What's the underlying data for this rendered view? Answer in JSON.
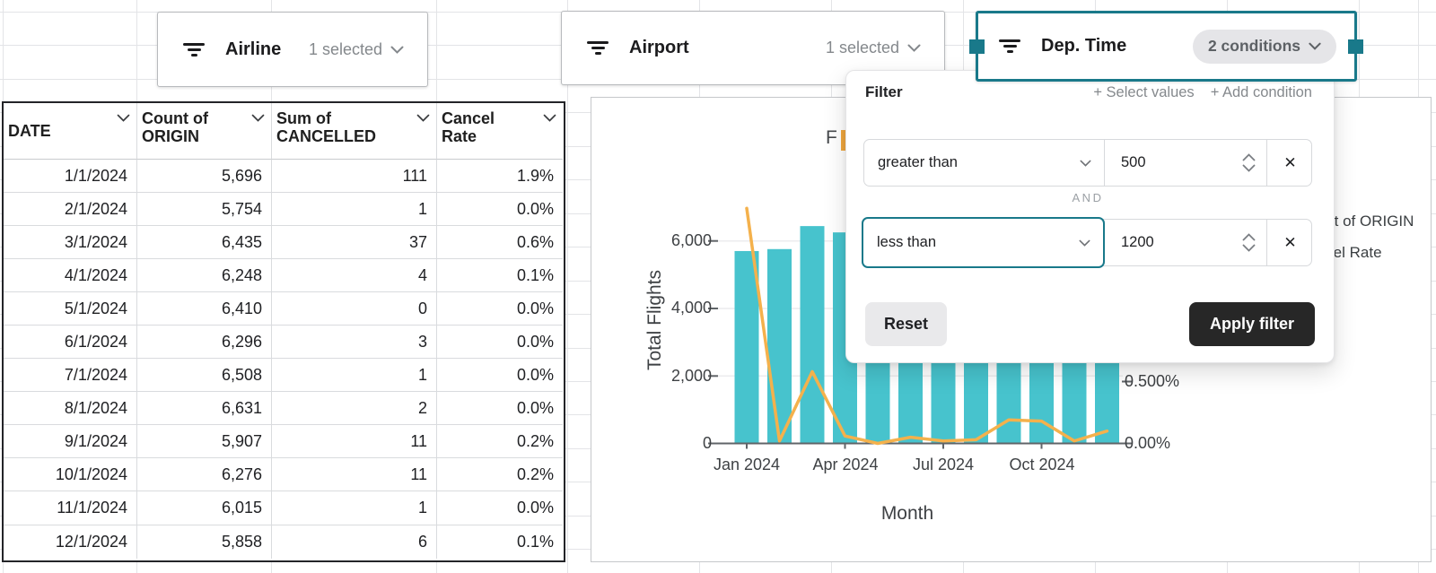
{
  "slicers": [
    {
      "label": "Airline",
      "status": "1 selected",
      "selected": false
    },
    {
      "label": "Airport",
      "status": "1 selected",
      "selected": false
    },
    {
      "label": "Dep. Time",
      "status": "2 conditions",
      "selected": true
    }
  ],
  "filter_popup": {
    "title": "Filter",
    "select_values_label": "+ Select values",
    "add_condition_label": "+ Add condition",
    "conjunction": "AND",
    "remove_icon": "✕",
    "conditions": [
      {
        "operator": "greater than",
        "value": "500"
      },
      {
        "operator": "less than",
        "value": "1200",
        "focused": true
      }
    ],
    "reset_label": "Reset",
    "apply_label": "Apply filter"
  },
  "table": {
    "columns": [
      "DATE",
      "Count of ORIGIN",
      "Sum of CANCELLED",
      "Cancel Rate"
    ],
    "rows": [
      [
        "1/1/2024",
        "5,696",
        "111",
        "1.9%"
      ],
      [
        "2/1/2024",
        "5,754",
        "1",
        "0.0%"
      ],
      [
        "3/1/2024",
        "6,435",
        "37",
        "0.6%"
      ],
      [
        "4/1/2024",
        "6,248",
        "4",
        "0.1%"
      ],
      [
        "5/1/2024",
        "6,410",
        "0",
        "0.0%"
      ],
      [
        "6/1/2024",
        "6,296",
        "3",
        "0.0%"
      ],
      [
        "7/1/2024",
        "6,508",
        "1",
        "0.0%"
      ],
      [
        "8/1/2024",
        "6,631",
        "2",
        "0.0%"
      ],
      [
        "9/1/2024",
        "5,907",
        "11",
        "0.2%"
      ],
      [
        "10/1/2024",
        "6,276",
        "11",
        "0.2%"
      ],
      [
        "11/1/2024",
        "6,015",
        "1",
        "0.0%"
      ],
      [
        "12/1/2024",
        "5,858",
        "6",
        "0.1%"
      ]
    ]
  },
  "chart_data": {
    "type": "combo-bar-line",
    "title_visible": "F",
    "categories": [
      "Jan 2024",
      "Feb 2024",
      "Mar 2024",
      "Apr 2024",
      "May 2024",
      "Jun 2024",
      "Jul 2024",
      "Aug 2024",
      "Sep 2024",
      "Oct 2024",
      "Nov 2024",
      "Dec 2024"
    ],
    "series": [
      {
        "name": "Count of ORIGIN",
        "type": "bar",
        "axis": "left",
        "color": "#47c3cd",
        "values": [
          5696,
          5754,
          6435,
          6248,
          6410,
          6296,
          6508,
          6631,
          5907,
          6276,
          6015,
          5858
        ]
      },
      {
        "name": "Cancel Rate",
        "type": "line",
        "axis": "right",
        "color": "#f4b14c",
        "values_pct": [
          1.9,
          0.02,
          0.58,
          0.06,
          0.0,
          0.05,
          0.02,
          0.03,
          0.19,
          0.18,
          0.02,
          0.1
        ]
      }
    ],
    "xlabel": "Month",
    "ylabel": "Total Flights",
    "x_ticks": [
      "Jan 2024",
      "Apr 2024",
      "Jul 2024",
      "Oct 2024"
    ],
    "y_left_ticks": [
      "6,000",
      "4,000",
      "2,000",
      "0"
    ],
    "y_right_ticks": [
      "0.500%",
      "0.00%"
    ],
    "ylim": [
      0,
      6700
    ],
    "y2lim_pct": [
      0,
      2.0
    ],
    "legend": [
      "Count of ORIGIN",
      "Cancel Rate"
    ],
    "legend_position": "right",
    "grid": true
  },
  "colors": {
    "accent_teal": "#19798a",
    "bar_teal": "#47c3cd",
    "line_orange": "#f4b14c",
    "apply_button": "#272727",
    "reset_button_bg": "#e9e9eb",
    "pill_bg": "#e5e5e8",
    "muted_text": "#84888c"
  }
}
